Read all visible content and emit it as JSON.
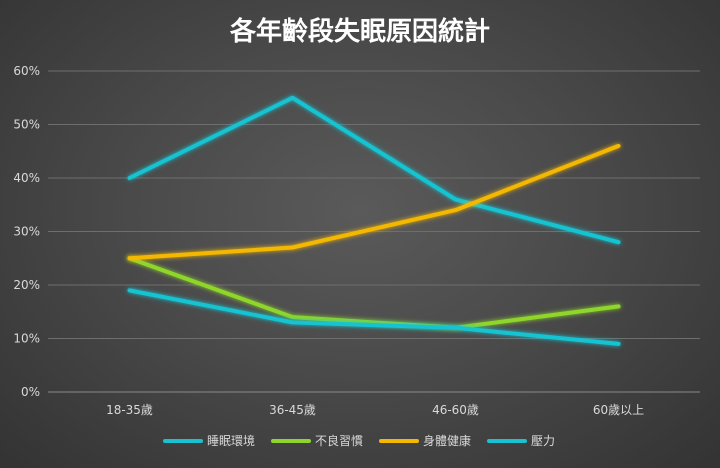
{
  "chart_data": {
    "type": "line",
    "title": "各年齡段失眠原因統計",
    "categories": [
      "18-35歲",
      "36-45歲",
      "46-60歲",
      "60歲以上"
    ],
    "ylim": [
      0,
      60
    ],
    "yticks": [
      "0%",
      "10%",
      "20%",
      "30%",
      "40%",
      "50%",
      "60%"
    ],
    "grid": true,
    "legend_position": "bottom",
    "series": [
      {
        "name": "睡眠環境",
        "color": "#17c3d1",
        "values": [
          40,
          55,
          36,
          28
        ]
      },
      {
        "name": "不良習慣",
        "color": "#8fd62c",
        "values": [
          25,
          14,
          12,
          16
        ]
      },
      {
        "name": "身體健康",
        "color": "#f5b800",
        "values": [
          25,
          27,
          34,
          46
        ]
      },
      {
        "name": "壓力",
        "color": "#17c3d1",
        "values": [
          19,
          13,
          12,
          9
        ]
      }
    ]
  }
}
